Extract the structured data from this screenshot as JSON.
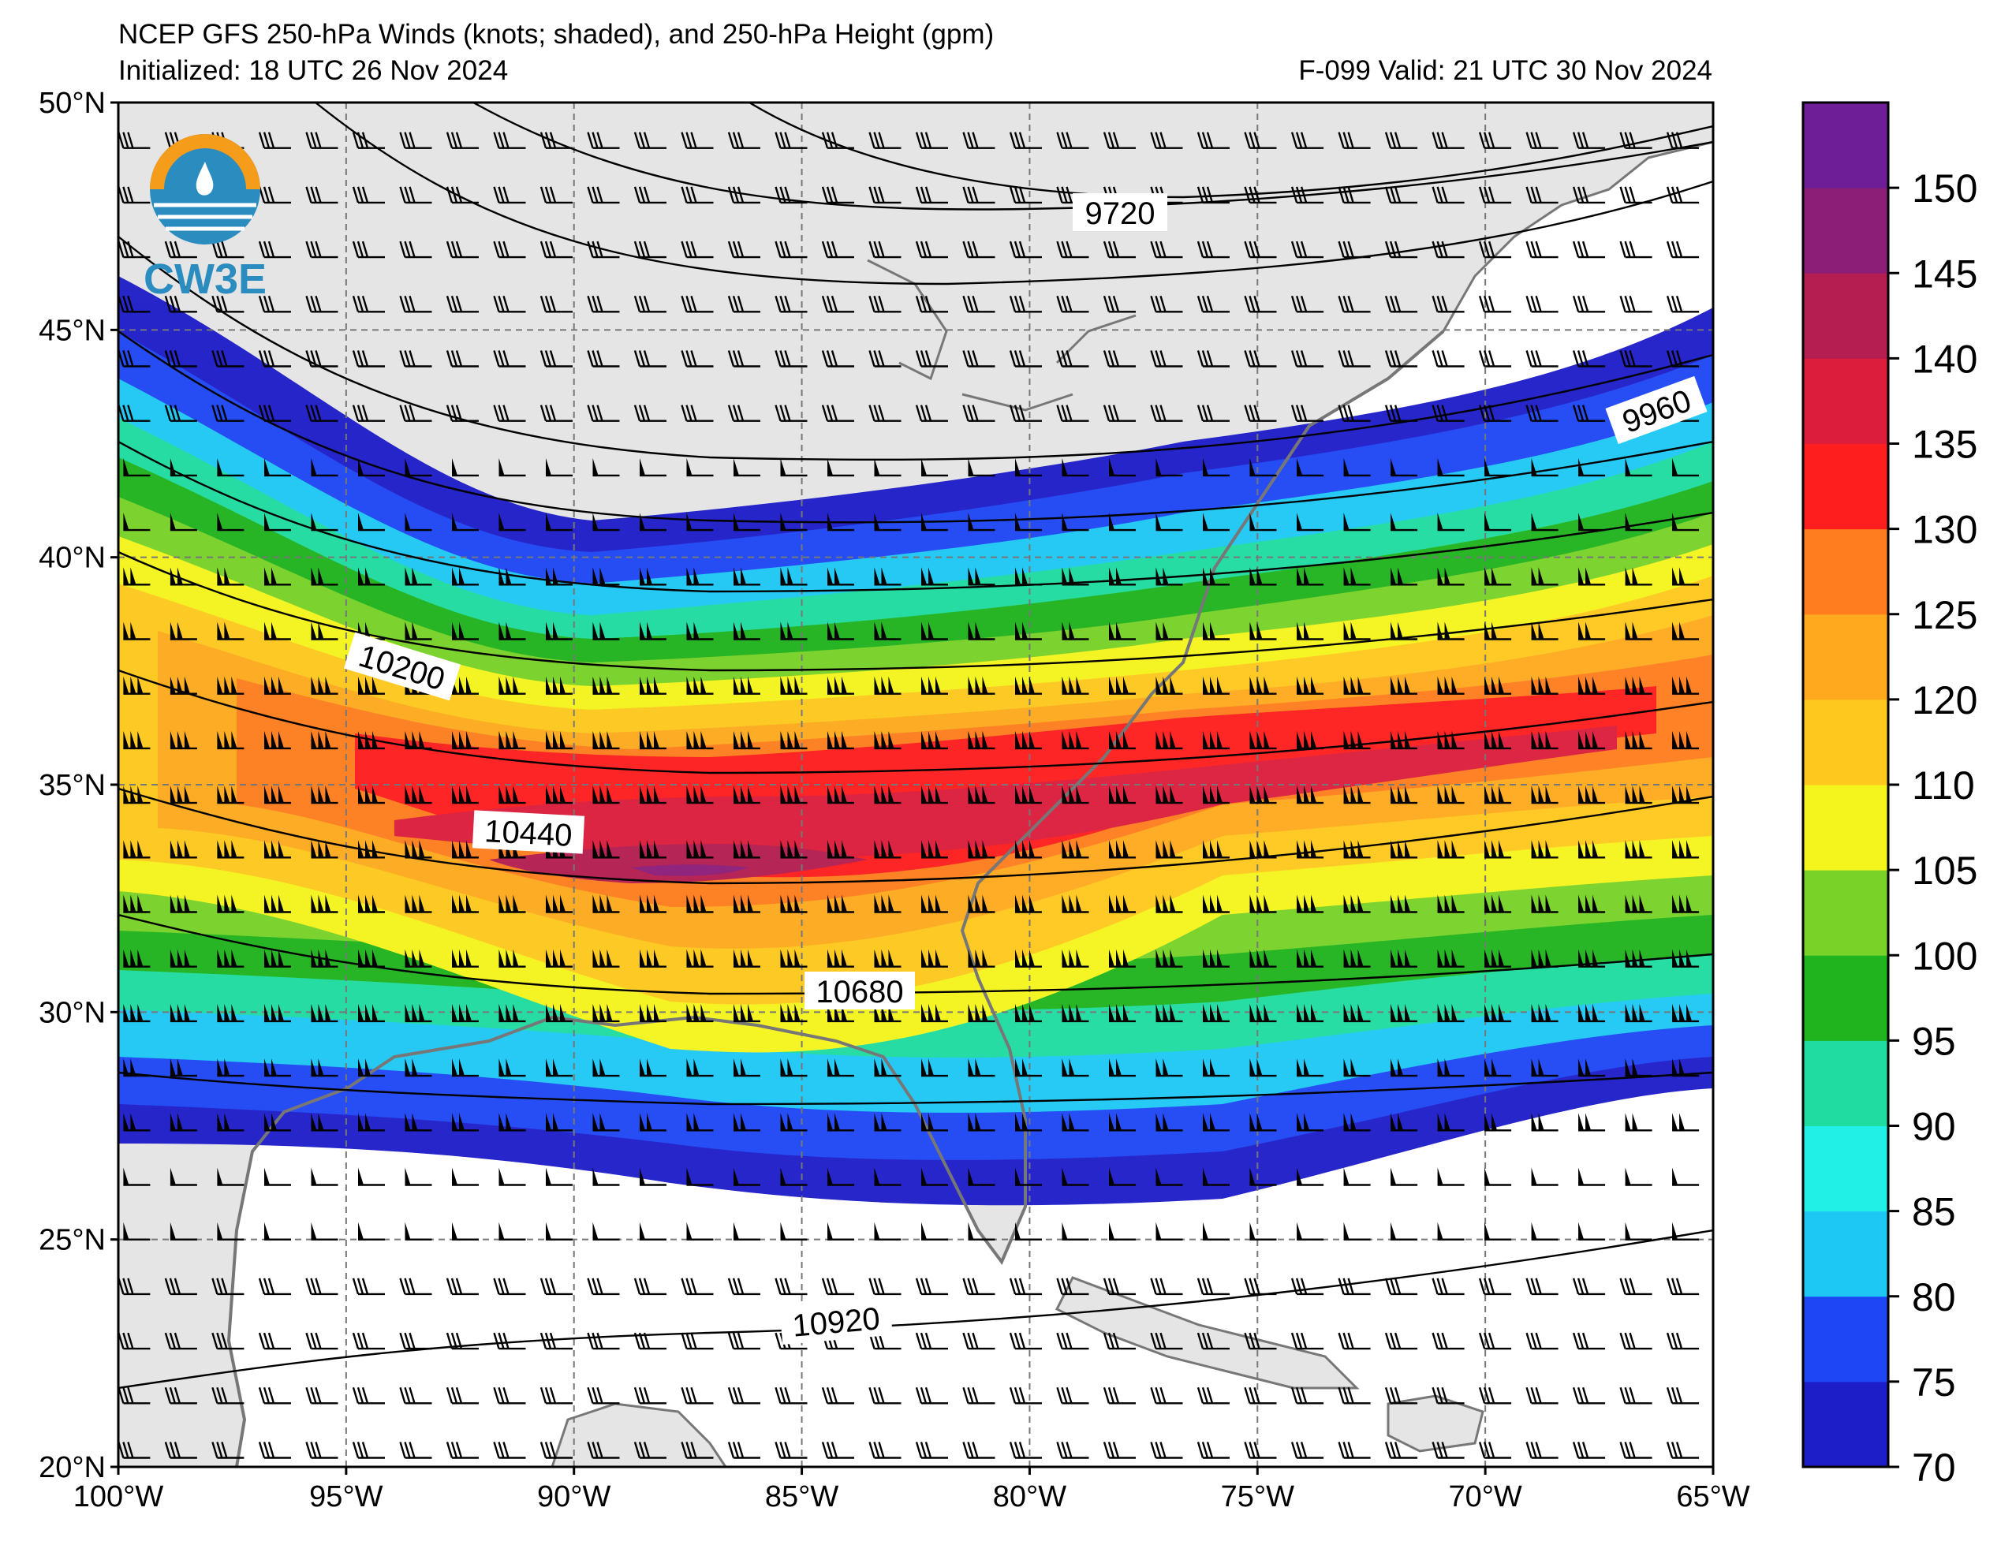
{
  "header": {
    "title": "NCEP GFS 250-hPa Winds (knots; shaded), and 250-hPa Height (gpm)",
    "initialized": "Initialized: 18 UTC 26 Nov 2024",
    "valid": "F-099  Valid: 21 UTC 30 Nov 2024"
  },
  "logo": {
    "text": "CW3E",
    "color": "#2b8cbf",
    "accent": "#f59c1a"
  },
  "map": {
    "lon_range": [
      -100,
      -65
    ],
    "lat_range": [
      20,
      50
    ],
    "lat_ticks": [
      "50°N",
      "45°N",
      "40°N",
      "35°N",
      "30°N",
      "25°N",
      "20°N"
    ],
    "lon_ticks": [
      "100°W",
      "95°W",
      "90°W",
      "85°W",
      "80°W",
      "75°W",
      "70°W",
      "65°W"
    ],
    "land_color": "#e5e5e5",
    "ocean_color": "#ffffff"
  },
  "colorbar": {
    "tick_labels": [
      "150",
      "145",
      "140",
      "135",
      "130",
      "125",
      "120",
      "110",
      "105",
      "100",
      "95",
      "90",
      "85",
      "80",
      "75",
      "70"
    ],
    "colors": [
      "#1e1ec8",
      "#1f46f5",
      "#1ec8f5",
      "#20f0e6",
      "#20dca0",
      "#20b41e",
      "#78d228",
      "#f5f51e",
      "#ffc81e",
      "#ffaa1e",
      "#ff7d1e",
      "#ff1e1e",
      "#dc1e3c",
      "#b41e50",
      "#8c1e78",
      "#6e1e96"
    ]
  },
  "contours": [
    {
      "label": "9720"
    },
    {
      "label": "9960"
    },
    {
      "label": "10200"
    },
    {
      "label": "10440"
    },
    {
      "label": "10680"
    },
    {
      "label": "10920"
    }
  ]
}
